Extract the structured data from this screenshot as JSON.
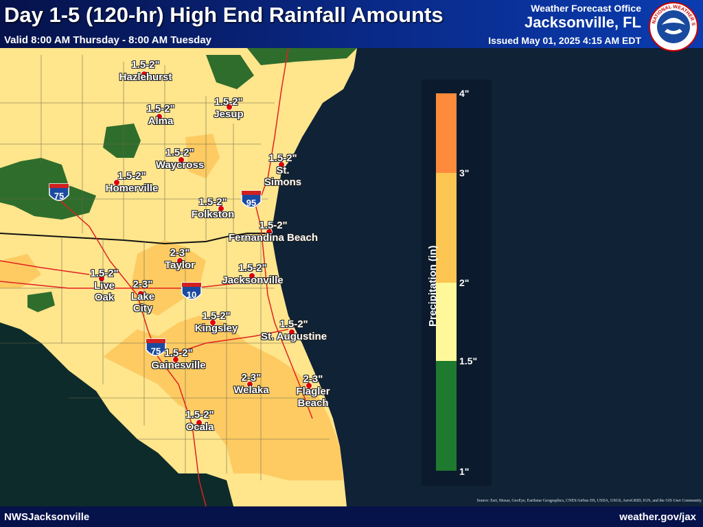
{
  "header": {
    "title": "Day 1-5 (120-hr) High End Rainfall Amounts",
    "valid": "Valid 8:00 AM Thursday - 8:00 AM Tuesday",
    "office": "Weather Forecast Office",
    "office_city": "Jacksonville, FL",
    "issued": "Issued May 01, 2025 4:15 AM EDT"
  },
  "logo": {
    "text": "NATIONAL WEATHER SERVICE",
    "icon": "nws-logo-icon"
  },
  "legend": {
    "title": "Precipitation (in)",
    "ticks": [
      "4\"",
      "3\"",
      "2\"",
      "1.5\"",
      "1\""
    ],
    "colors": [
      "#fe8a3c",
      "#fdc552",
      "#fff89a",
      "#1e7a2e",
      "#0f5a20"
    ]
  },
  "cities": [
    {
      "name": "Hazlehurst",
      "amount": "1.5-2\""
    },
    {
      "name": "Alma",
      "amount": "1.5-2\""
    },
    {
      "name": "Jesup",
      "amount": "1.5-2\""
    },
    {
      "name": "Waycross",
      "amount": "1.5-2\""
    },
    {
      "name": "St. Simons",
      "amount": "1.5-2\""
    },
    {
      "name": "Homerville",
      "amount": "1.5-2\""
    },
    {
      "name": "Folkston",
      "amount": "1.5-2\""
    },
    {
      "name": "Fernandina Beach",
      "amount": "1.5-2\""
    },
    {
      "name": "Taylor",
      "amount": "2-3\""
    },
    {
      "name": "Live Oak",
      "amount": "1.5-2\""
    },
    {
      "name": "Lake City",
      "amount": "2-3\""
    },
    {
      "name": "Jacksonville",
      "amount": "1.5-2\""
    },
    {
      "name": "Kingsley",
      "amount": "1.5-2\""
    },
    {
      "name": "St. Augustine",
      "amount": "1.5-2\""
    },
    {
      "name": "Gainesville",
      "amount": "1.5-2\""
    },
    {
      "name": "Welaka",
      "amount": "2-3\""
    },
    {
      "name": "Flagler Beach",
      "amount": "2-3\""
    },
    {
      "name": "Ocala",
      "amount": "1.5-2\""
    }
  ],
  "highways": [
    "75",
    "95",
    "10"
  ],
  "colors": {
    "ocean": "#0f2236",
    "land_base": "#ffe38a",
    "land_mid": "#fdcf6a",
    "land_green": "#2e6b2a",
    "roads": "#e02020",
    "header": "#0a2a8a"
  },
  "footer": {
    "left": "NWSJacksonville",
    "right": "weather.gov/jax",
    "source": "Source: Esri, Maxar, GeoEye, Earthstar Geographics, CNES/Airbus DS, USDA, USGS, AeroGRID, IGN, and the GIS User Community"
  }
}
